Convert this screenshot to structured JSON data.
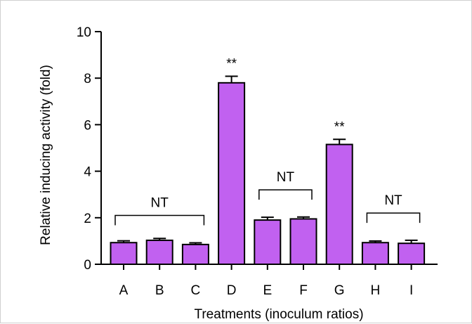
{
  "chart_data": {
    "type": "bar",
    "title": "",
    "xlabel": "Treatments (inoculum ratios)",
    "ylabel": "Relative inducing activity (fold)",
    "ylim": [
      0,
      10
    ],
    "yticks": [
      "0",
      "2",
      "4",
      "6",
      "8",
      "10"
    ],
    "categories": [
      "A",
      "B",
      "C",
      "D",
      "E",
      "F",
      "G",
      "H",
      "I"
    ],
    "values": [
      0.93,
      1.03,
      0.85,
      7.8,
      1.9,
      1.95,
      5.15,
      0.93,
      0.9
    ],
    "errors": [
      0.08,
      0.08,
      0.07,
      0.28,
      0.12,
      0.08,
      0.22,
      0.07,
      0.13
    ],
    "significance": [
      {
        "category": "D",
        "label": "**"
      },
      {
        "category": "G",
        "label": "**"
      }
    ],
    "group_brackets": [
      {
        "categories": [
          "A",
          "B",
          "C"
        ],
        "label": "NT",
        "level": 2.1
      },
      {
        "categories": [
          "E",
          "F"
        ],
        "label": "NT",
        "level": 3.2
      },
      {
        "categories": [
          "H",
          "I"
        ],
        "label": "NT",
        "level": 2.2
      }
    ],
    "bar_color": "#c161f0",
    "grid": false,
    "legend": "none"
  }
}
